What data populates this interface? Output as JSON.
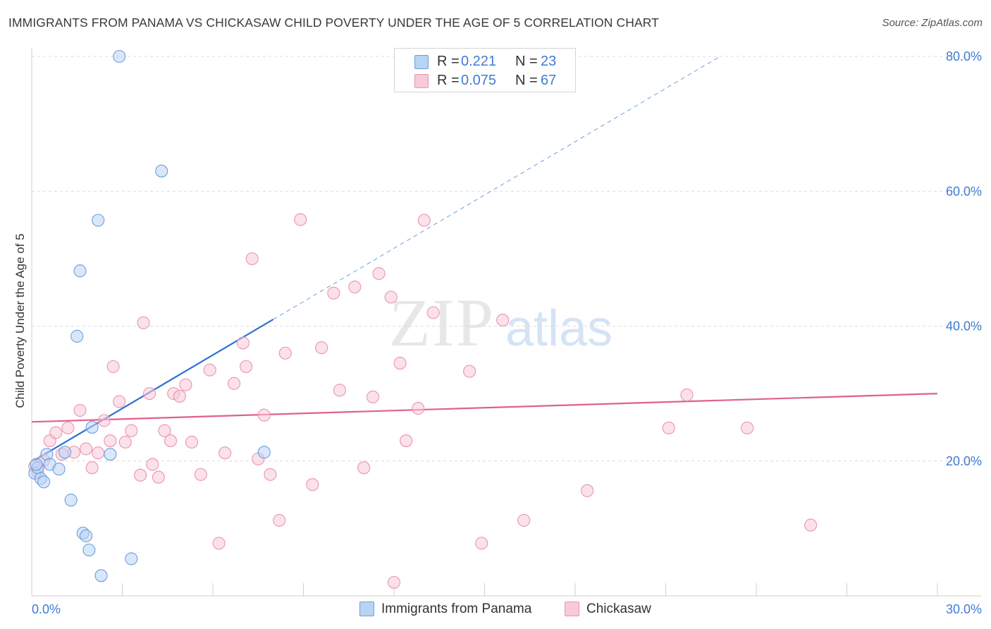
{
  "title": "IMMIGRANTS FROM PANAMA VS CHICKASAW CHILD POVERTY UNDER THE AGE OF 5 CORRELATION CHART",
  "source": "Source: ZipAtlas.com",
  "watermark": {
    "zip": "ZIP",
    "atlas": "atlas"
  },
  "legend": {
    "rows": [
      {
        "r_label": "R =",
        "r_value": "0.221",
        "n_label": "N =",
        "n_value": "23",
        "color": "#a9c8f2"
      },
      {
        "r_label": "R =",
        "r_value": "0.075",
        "n_label": "N =",
        "n_value": "67",
        "color": "#f6b8cb"
      }
    ]
  },
  "chart_data": {
    "type": "scatter",
    "title": "IMMIGRANTS FROM PANAMA VS CHICKASAW CHILD POVERTY UNDER THE AGE OF 5 CORRELATION CHART",
    "xlabel": "",
    "ylabel": "Child Poverty Under the Age of 5",
    "xlim": [
      0,
      30
    ],
    "ylim": [
      0,
      80
    ],
    "x_tick_labels": [
      "0.0%",
      "30.0%"
    ],
    "y_tick_values": [
      20,
      40,
      60,
      80
    ],
    "y_tick_labels": [
      "20.0%",
      "40.0%",
      "60.0%",
      "80.0%"
    ],
    "grid": true,
    "legend_position": "top-center",
    "series": [
      {
        "name": "Immigrants from Panama",
        "color": "#6b9fe0",
        "fill": "#b9d3f4",
        "trend": {
          "x0": 0.05,
          "y0": 20.0,
          "x1": 8.0,
          "y1": 41.0,
          "dashed_to_x": 22.8,
          "dashed_to_y": 80.0,
          "color": "#2f6fd1"
        },
        "points": [
          [
            0.1,
            18.2
          ],
          [
            0.2,
            19.0
          ],
          [
            0.3,
            17.4
          ],
          [
            0.4,
            16.9
          ],
          [
            0.5,
            21.0
          ],
          [
            0.6,
            19.5
          ],
          [
            0.9,
            18.8
          ],
          [
            1.1,
            21.3
          ],
          [
            1.3,
            14.2
          ],
          [
            1.5,
            38.5
          ],
          [
            1.6,
            48.2
          ],
          [
            1.7,
            9.3
          ],
          [
            1.8,
            8.9
          ],
          [
            1.9,
            6.8
          ],
          [
            2.0,
            25.0
          ],
          [
            2.2,
            55.7
          ],
          [
            2.3,
            3.0
          ],
          [
            2.6,
            21.0
          ],
          [
            2.9,
            80.0
          ],
          [
            3.3,
            5.5
          ],
          [
            4.3,
            63.0
          ],
          [
            7.7,
            21.3
          ],
          [
            0.15,
            19.5
          ]
        ]
      },
      {
        "name": "Chickasaw",
        "color": "#e994b0",
        "fill": "#f8c9d8",
        "trend": {
          "x0": 0,
          "y0": 25.8,
          "x1": 30,
          "y1": 30.0,
          "color": "#e0608d"
        },
        "points": [
          [
            0.1,
            19.2
          ],
          [
            0.2,
            18.3
          ],
          [
            0.4,
            20.1
          ],
          [
            0.6,
            23.0
          ],
          [
            0.8,
            24.2
          ],
          [
            1.0,
            21.0
          ],
          [
            1.2,
            24.9
          ],
          [
            1.4,
            21.3
          ],
          [
            1.6,
            27.5
          ],
          [
            1.8,
            21.8
          ],
          [
            2.0,
            19.0
          ],
          [
            2.2,
            21.2
          ],
          [
            2.4,
            26.0
          ],
          [
            2.6,
            23.0
          ],
          [
            2.7,
            34.0
          ],
          [
            2.9,
            28.8
          ],
          [
            3.1,
            22.8
          ],
          [
            3.3,
            24.5
          ],
          [
            3.6,
            17.9
          ],
          [
            3.7,
            40.5
          ],
          [
            3.9,
            30.0
          ],
          [
            4.0,
            19.5
          ],
          [
            4.2,
            17.6
          ],
          [
            4.4,
            24.5
          ],
          [
            4.6,
            23.0
          ],
          [
            4.7,
            30.0
          ],
          [
            4.9,
            29.6
          ],
          [
            5.1,
            31.3
          ],
          [
            5.3,
            22.8
          ],
          [
            5.6,
            18.0
          ],
          [
            5.9,
            33.5
          ],
          [
            6.2,
            7.8
          ],
          [
            6.4,
            21.2
          ],
          [
            6.7,
            31.5
          ],
          [
            7.0,
            37.5
          ],
          [
            7.3,
            50.0
          ],
          [
            7.1,
            34.0
          ],
          [
            7.5,
            20.3
          ],
          [
            7.7,
            26.8
          ],
          [
            7.9,
            18.0
          ],
          [
            8.2,
            11.2
          ],
          [
            8.4,
            36.0
          ],
          [
            8.9,
            55.8
          ],
          [
            9.3,
            16.5
          ],
          [
            9.6,
            36.8
          ],
          [
            10.0,
            44.9
          ],
          [
            10.2,
            30.5
          ],
          [
            10.7,
            45.8
          ],
          [
            11.0,
            19.0
          ],
          [
            11.3,
            29.5
          ],
          [
            11.5,
            47.8
          ],
          [
            11.9,
            44.3
          ],
          [
            12.0,
            2.0
          ],
          [
            12.2,
            34.5
          ],
          [
            12.4,
            23.0
          ],
          [
            12.8,
            27.8
          ],
          [
            13.0,
            55.7
          ],
          [
            13.3,
            42.0
          ],
          [
            14.5,
            33.3
          ],
          [
            14.9,
            7.8
          ],
          [
            15.6,
            40.9
          ],
          [
            16.3,
            11.2
          ],
          [
            18.4,
            15.6
          ],
          [
            21.1,
            24.9
          ],
          [
            21.7,
            29.8
          ],
          [
            23.7,
            24.9
          ],
          [
            25.8,
            10.5
          ]
        ]
      }
    ]
  }
}
